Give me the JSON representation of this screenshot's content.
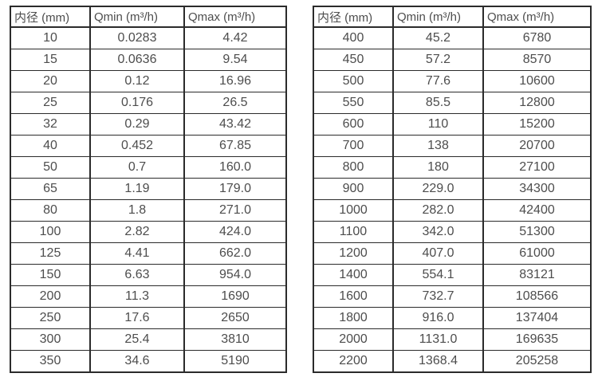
{
  "colors": {
    "border": "#2b2b2b",
    "text": "#4d4d4d",
    "background": "#ffffff"
  },
  "tables": [
    {
      "id": "small-diameter-flow-table",
      "headers": [
        "内径 (mm)",
        "Qmin (m³/h)",
        "Qmax (m³/h)"
      ],
      "rows": [
        [
          "10",
          "0.0283",
          "4.42"
        ],
        [
          "15",
          "0.0636",
          "9.54"
        ],
        [
          "20",
          "0.12",
          "16.96"
        ],
        [
          "25",
          "0.176",
          "26.5"
        ],
        [
          "32",
          "0.29",
          "43.42"
        ],
        [
          "40",
          "0.452",
          "67.85"
        ],
        [
          "50",
          "0.7",
          "160.0"
        ],
        [
          "65",
          "1.19",
          "179.0"
        ],
        [
          "80",
          "1.8",
          "271.0"
        ],
        [
          "100",
          "2.82",
          "424.0"
        ],
        [
          "125",
          "4.41",
          "662.0"
        ],
        [
          "150",
          "6.63",
          "954.0"
        ],
        [
          "200",
          "11.3",
          "1690"
        ],
        [
          "250",
          "17.6",
          "2650"
        ],
        [
          "300",
          "25.4",
          "3810"
        ],
        [
          "350",
          "34.6",
          "5190"
        ]
      ]
    },
    {
      "id": "large-diameter-flow-table",
      "headers": [
        "内径 (mm)",
        "Qmin (m³/h)",
        "Qmax (m³/h)"
      ],
      "rows": [
        [
          "400",
          "45.2",
          "6780"
        ],
        [
          "450",
          "57.2",
          "8570"
        ],
        [
          "500",
          "77.6",
          "10600"
        ],
        [
          "550",
          "85.5",
          "12800"
        ],
        [
          "600",
          "110",
          "15200"
        ],
        [
          "700",
          "138",
          "20700"
        ],
        [
          "800",
          "180",
          "27100"
        ],
        [
          "900",
          "229.0",
          "34300"
        ],
        [
          "1000",
          "282.0",
          "42400"
        ],
        [
          "1100",
          "342.0",
          "51300"
        ],
        [
          "1200",
          "407.0",
          "61000"
        ],
        [
          "1400",
          "554.1",
          "83121"
        ],
        [
          "1600",
          "732.7",
          "108566"
        ],
        [
          "1800",
          "916.0",
          "137404"
        ],
        [
          "2000",
          "1131.0",
          "169635"
        ],
        [
          "2200",
          "1368.4",
          "205258"
        ]
      ]
    }
  ]
}
